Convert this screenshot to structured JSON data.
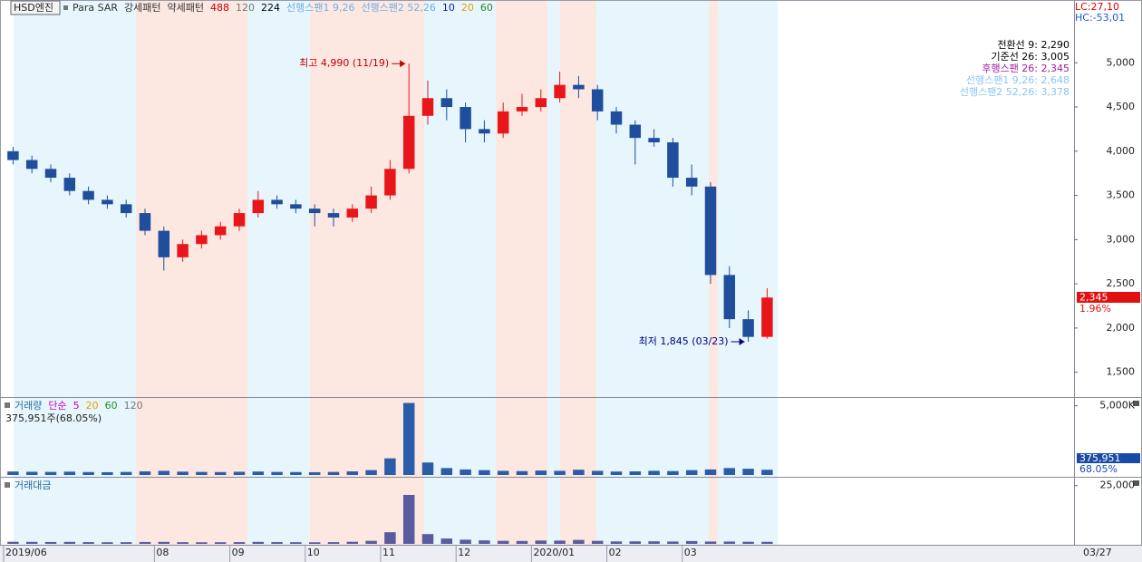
{
  "legend": {
    "box": "HSD엔진",
    "items": [
      {
        "text": "Para SAR",
        "color": "#333333"
      },
      {
        "text": "강세패턴",
        "color": "#333333"
      },
      {
        "text": "약세패턴",
        "color": "#333333"
      },
      {
        "text": "488",
        "color": "#cc0000"
      },
      {
        "text": "120",
        "color": "#777777"
      },
      {
        "text": "224",
        "color": "#000000"
      },
      {
        "text": "선행스팬1 9,26",
        "color": "#6ab0e8"
      },
      {
        "text": "선행스팬2 52,26",
        "color": "#6ab0e8"
      },
      {
        "text": "10",
        "color": "#1a1a8c"
      },
      {
        "text": "20",
        "color": "#e8a000"
      },
      {
        "text": "60",
        "color": "#2a8a2a"
      }
    ]
  },
  "indicator_info": [
    {
      "text": "전환선 9: 2,290",
      "color": "#000000"
    },
    {
      "text": "기준선 26: 3,005",
      "color": "#000000"
    },
    {
      "text": "후행스팬 26: 2,345",
      "color": "#a020a0"
    },
    {
      "text": "선행스팬1 9,26: 2,648",
      "color": "#8cc4f0"
    },
    {
      "text": "선행스팬2 52,26: 3,378",
      "color": "#8cc4f0"
    }
  ],
  "status": {
    "lc": "LC:27,10",
    "hc": "HC:-53,01",
    "price": "2,345",
    "change": "1.96%",
    "volume": "375,951",
    "volume_ratio": "68.05%",
    "last_date": "03/27"
  },
  "chart_data": [
    {
      "type": "candlestick",
      "up_color": "#e8161b",
      "down_color": "#1f4e9c",
      "ylim": [
        1230,
        5710
      ],
      "yticks": [
        {
          "value": 1500,
          "label": "1,500"
        },
        {
          "value": 2000,
          "label": "2,000"
        },
        {
          "value": 2500,
          "label": "2,500"
        },
        {
          "value": 3000,
          "label": "3,000"
        },
        {
          "value": 3500,
          "label": "3,500"
        },
        {
          "value": 4000,
          "label": "4,000"
        },
        {
          "value": 4500,
          "label": "4,500"
        },
        {
          "value": 5000,
          "label": "5,000"
        }
      ],
      "xticks": [
        {
          "value": 0,
          "label": "2019/06"
        },
        {
          "value": 8,
          "label": "08"
        },
        {
          "value": 12,
          "label": "09"
        },
        {
          "value": 16,
          "label": "10"
        },
        {
          "value": 20,
          "label": "11"
        },
        {
          "value": 24,
          "label": "12"
        },
        {
          "value": 28,
          "label": "2020/01"
        },
        {
          "value": 32,
          "label": "02"
        },
        {
          "value": 36,
          "label": "03"
        }
      ],
      "candles": [
        [
          4000,
          4050,
          3850,
          3900
        ],
        [
          3900,
          3950,
          3750,
          3800
        ],
        [
          3800,
          3850,
          3650,
          3700
        ],
        [
          3700,
          3750,
          3500,
          3550
        ],
        [
          3550,
          3600,
          3400,
          3450
        ],
        [
          3450,
          3500,
          3350,
          3400
        ],
        [
          3400,
          3450,
          3250,
          3300
        ],
        [
          3300,
          3350,
          3050,
          3100
        ],
        [
          3100,
          3150,
          2650,
          2800
        ],
        [
          2800,
          3000,
          2750,
          2950
        ],
        [
          2950,
          3100,
          2900,
          3050
        ],
        [
          3050,
          3200,
          3000,
          3150
        ],
        [
          3150,
          3350,
          3100,
          3300
        ],
        [
          3300,
          3550,
          3250,
          3450
        ],
        [
          3450,
          3500,
          3350,
          3400
        ],
        [
          3400,
          3450,
          3300,
          3350
        ],
        [
          3350,
          3400,
          3150,
          3300
        ],
        [
          3300,
          3350,
          3150,
          3250
        ],
        [
          3250,
          3400,
          3200,
          3350
        ],
        [
          3350,
          3600,
          3300,
          3500
        ],
        [
          3500,
          3900,
          3450,
          3800
        ],
        [
          3800,
          4990,
          3750,
          4400
        ],
        [
          4400,
          4800,
          4300,
          4600
        ],
        [
          4600,
          4700,
          4350,
          4500
        ],
        [
          4500,
          4550,
          4100,
          4250
        ],
        [
          4250,
          4350,
          4100,
          4200
        ],
        [
          4200,
          4550,
          4150,
          4450
        ],
        [
          4450,
          4650,
          4400,
          4500
        ],
        [
          4500,
          4700,
          4450,
          4600
        ],
        [
          4600,
          4900,
          4550,
          4750
        ],
        [
          4750,
          4850,
          4600,
          4700
        ],
        [
          4700,
          4750,
          4350,
          4450
        ],
        [
          4450,
          4500,
          4200,
          4300
        ],
        [
          4300,
          4350,
          3850,
          4150
        ],
        [
          4150,
          4250,
          4050,
          4100
        ],
        [
          4100,
          4150,
          3600,
          3700
        ],
        [
          3700,
          3850,
          3500,
          3600
        ],
        [
          3600,
          3650,
          2500,
          2600
        ],
        [
          2600,
          2700,
          2000,
          2100
        ],
        [
          2100,
          2200,
          1845,
          1900
        ],
        [
          1900,
          2450,
          1880,
          2345
        ]
      ],
      "annotations": [
        {
          "text": "최고 4,990 (11/19)",
          "value": 4990,
          "color": "#c00000"
        },
        {
          "text": "최저 1,845 (03/23)",
          "value": 1845,
          "color": "#000080"
        }
      ]
    },
    {
      "type": "bar",
      "title": "거래량",
      "subtitle": "375,951주(68.05%)",
      "legend": [
        {
          "text": "단순",
          "color": "#c000c0"
        },
        {
          "text": "5",
          "color": "#c000c0"
        },
        {
          "text": "20",
          "color": "#e8a000"
        },
        {
          "text": "60",
          "color": "#2a8a2a"
        },
        {
          "text": "120",
          "color": "#777777"
        }
      ],
      "color": "#2a5caa",
      "ylim": [
        0,
        5500
      ],
      "yticks": [
        {
          "value": 5000,
          "label": "5,000K"
        }
      ],
      "values": [
        250,
        230,
        220,
        240,
        210,
        200,
        220,
        260,
        300,
        240,
        220,
        210,
        230,
        250,
        220,
        210,
        200,
        220,
        260,
        350,
        1200,
        5200,
        900,
        500,
        400,
        350,
        300,
        280,
        320,
        300,
        380,
        300,
        250,
        260,
        300,
        280,
        350,
        400,
        500,
        450,
        376
      ]
    },
    {
      "type": "bar",
      "title": "거래대금",
      "color": "#5a5aa0",
      "ylim": [
        0,
        28000
      ],
      "yticks": [
        {
          "value": 25000,
          "label": "25,000"
        }
      ],
      "values": [
        900,
        850,
        800,
        850,
        750,
        700,
        720,
        800,
        850,
        720,
        680,
        700,
        750,
        850,
        760,
        720,
        680,
        740,
        900,
        1300,
        5000,
        21000,
        4200,
        2300,
        1800,
        1500,
        1300,
        1250,
        1450,
        1400,
        1700,
        1300,
        1050,
        1080,
        1100,
        1000,
        1200,
        1000,
        1000,
        900,
        880
      ]
    }
  ]
}
